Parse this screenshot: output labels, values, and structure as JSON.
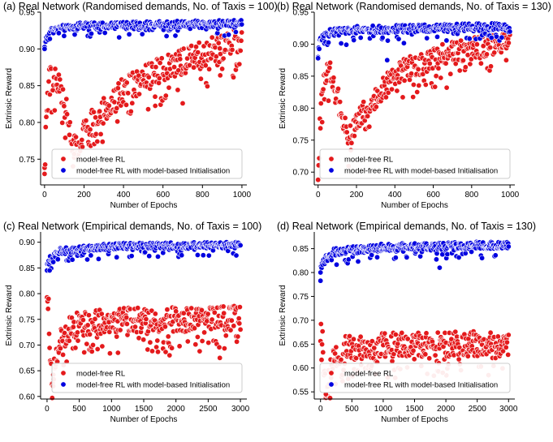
{
  "figure": {
    "background": "#ffffff",
    "colors": {
      "model_free": "#e41a1c",
      "model_based": "#0000e0",
      "point_edge": "#ffffff"
    }
  },
  "chart_data": [
    {
      "type": "scatter",
      "title": "(a) Real Network (Randomised demands, No. of Taxis = 100)",
      "xlabel": "Number of Epochs",
      "ylabel": "Extrinsic Reward",
      "xlim": [
        -20,
        1025
      ],
      "ylim": [
        0.715,
        0.95
      ],
      "xticks": [
        0,
        200,
        400,
        600,
        800,
        1000
      ],
      "yticks": [
        0.75,
        0.8,
        0.85,
        0.9,
        0.95
      ],
      "ytick_labels": [
        "0.75",
        "0.80",
        "0.85",
        "0.90",
        "0.95"
      ],
      "legend_position": "lower-right",
      "series": [
        {
          "name": "model-free RL",
          "color": "#e41a1c",
          "n": 1000,
          "anchors": [
            [
              0,
              0.73
            ],
            [
              8,
              0.8
            ],
            [
              25,
              0.86
            ],
            [
              60,
              0.86
            ],
            [
              110,
              0.82
            ],
            [
              150,
              0.765
            ],
            [
              200,
              0.79
            ],
            [
              400,
              0.845
            ],
            [
              600,
              0.875
            ],
            [
              800,
              0.895
            ],
            [
              1000,
              0.915
            ]
          ],
          "spread": 0.045,
          "outliers": [
            [
              0,
              0.73
            ],
            [
              150,
              0.757
            ],
            [
              700,
              0.826
            ],
            [
              890,
              0.864
            ],
            [
              560,
              0.835
            ]
          ]
        },
        {
          "name": "model-free RL with model-based Initialisation",
          "color": "#0000e0",
          "n": 1000,
          "anchors": [
            [
              0,
              0.9
            ],
            [
              10,
              0.915
            ],
            [
              40,
              0.925
            ],
            [
              200,
              0.93
            ],
            [
              1000,
              0.933
            ]
          ],
          "spread": 0.015,
          "outliers": [
            [
              0,
              0.9
            ]
          ]
        }
      ]
    },
    {
      "type": "scatter",
      "title": "(b) Real Network (Randomised demands, No. of Taxis = 130)",
      "xlabel": "Number of Epochs",
      "ylabel": "Extrinsic Reward",
      "xlim": [
        -20,
        1025
      ],
      "ylim": [
        0.68,
        0.95
      ],
      "xticks": [
        0,
        200,
        400,
        600,
        800,
        1000
      ],
      "yticks": [
        0.7,
        0.75,
        0.8,
        0.85,
        0.9,
        0.95
      ],
      "ytick_labels": [
        "0.70",
        "0.75",
        "0.80",
        "0.85",
        "0.90",
        "0.95"
      ],
      "legend_position": "lower-right",
      "series": [
        {
          "name": "model-free RL",
          "color": "#e41a1c",
          "n": 1000,
          "anchors": [
            [
              0,
              0.69
            ],
            [
              8,
              0.77
            ],
            [
              25,
              0.84
            ],
            [
              60,
              0.86
            ],
            [
              110,
              0.81
            ],
            [
              160,
              0.755
            ],
            [
              200,
              0.78
            ],
            [
              400,
              0.855
            ],
            [
              600,
              0.88
            ],
            [
              800,
              0.895
            ],
            [
              1000,
              0.91
            ]
          ],
          "spread": 0.045,
          "outliers": [
            [
              0,
              0.688
            ],
            [
              670,
              0.832
            ],
            [
              980,
              0.875
            ]
          ]
        },
        {
          "name": "model-free RL with model-based Initialisation",
          "color": "#0000e0",
          "n": 1000,
          "anchors": [
            [
              0,
              0.88
            ],
            [
              10,
              0.905
            ],
            [
              40,
              0.915
            ],
            [
              200,
              0.92
            ],
            [
              1000,
              0.925
            ]
          ],
          "spread": 0.02,
          "outliers": [
            [
              0,
              0.878
            ],
            [
              360,
              0.875
            ]
          ]
        }
      ]
    },
    {
      "type": "scatter",
      "title": "(c) Real Network (Empirical demands, No. of Taxis = 100)",
      "xlabel": "Number of Epochs",
      "ylabel": "Extrinsic Reward",
      "xlim": [
        -100,
        3100
      ],
      "ylim": [
        0.595,
        0.92
      ],
      "xticks": [
        0,
        500,
        1000,
        1500,
        2000,
        2500,
        3000
      ],
      "yticks": [
        0.6,
        0.65,
        0.7,
        0.75,
        0.8,
        0.85,
        0.9
      ],
      "ytick_labels": [
        "0.60",
        "0.65",
        "0.70",
        "0.75",
        "0.80",
        "0.85",
        "0.90"
      ],
      "legend_position": "lower-right",
      "series": [
        {
          "name": "model-free RL",
          "color": "#e41a1c",
          "n": 3000,
          "anchors": [
            [
              0,
              0.81
            ],
            [
              30,
              0.76
            ],
            [
              80,
              0.63
            ],
            [
              120,
              0.66
            ],
            [
              200,
              0.71
            ],
            [
              400,
              0.74
            ],
            [
              1000,
              0.75
            ],
            [
              3000,
              0.755
            ]
          ],
          "spread": 0.06,
          "outliers": [
            [
              95,
              0.62
            ],
            [
              2680,
              0.675
            ],
            [
              1100,
              0.685
            ],
            [
              1900,
              0.68
            ]
          ]
        },
        {
          "name": "model-free RL with model-based Initialisation",
          "color": "#0000e0",
          "n": 3000,
          "anchors": [
            [
              0,
              0.85
            ],
            [
              50,
              0.865
            ],
            [
              200,
              0.88
            ],
            [
              1000,
              0.89
            ],
            [
              3000,
              0.892
            ]
          ],
          "spread": 0.02,
          "outliers": [
            [
              0,
              0.845
            ],
            [
              40,
              0.845
            ]
          ]
        }
      ]
    },
    {
      "type": "scatter",
      "title": "(d) Real Network (Empirical demands, No. of Taxis = 130)",
      "xlabel": "Number of Epochs",
      "ylabel": "Extrinsic Reward",
      "xlim": [
        -100,
        3100
      ],
      "ylim": [
        0.535,
        0.885
      ],
      "xticks": [
        0,
        500,
        1000,
        1500,
        2000,
        2500,
        3000
      ],
      "yticks": [
        0.55,
        0.6,
        0.65,
        0.7,
        0.75,
        0.8,
        0.85
      ],
      "ytick_labels": [
        "0.55",
        "0.60",
        "0.65",
        "0.70",
        "0.75",
        "0.80",
        "0.85"
      ],
      "legend_position": "lower-right",
      "series": [
        {
          "name": "model-free RL",
          "color": "#e41a1c",
          "n": 3000,
          "anchors": [
            [
              0,
              0.72
            ],
            [
              30,
              0.66
            ],
            [
              80,
              0.56
            ],
            [
              120,
              0.58
            ],
            [
              200,
              0.62
            ],
            [
              400,
              0.645
            ],
            [
              1000,
              0.65
            ],
            [
              3000,
              0.655
            ]
          ],
          "spread": 0.065,
          "outliers": [
            [
              85,
              0.545
            ],
            [
              2680,
              0.585
            ],
            [
              1950,
              0.59
            ]
          ]
        },
        {
          "name": "model-free RL with model-based Initialisation",
          "color": "#0000e0",
          "n": 3000,
          "anchors": [
            [
              0,
              0.8
            ],
            [
              50,
              0.82
            ],
            [
              200,
              0.84
            ],
            [
              1000,
              0.85
            ],
            [
              3000,
              0.855
            ]
          ],
          "spread": 0.025,
          "outliers": [
            [
              0,
              0.8
            ],
            [
              1900,
              0.81
            ]
          ]
        }
      ]
    }
  ]
}
